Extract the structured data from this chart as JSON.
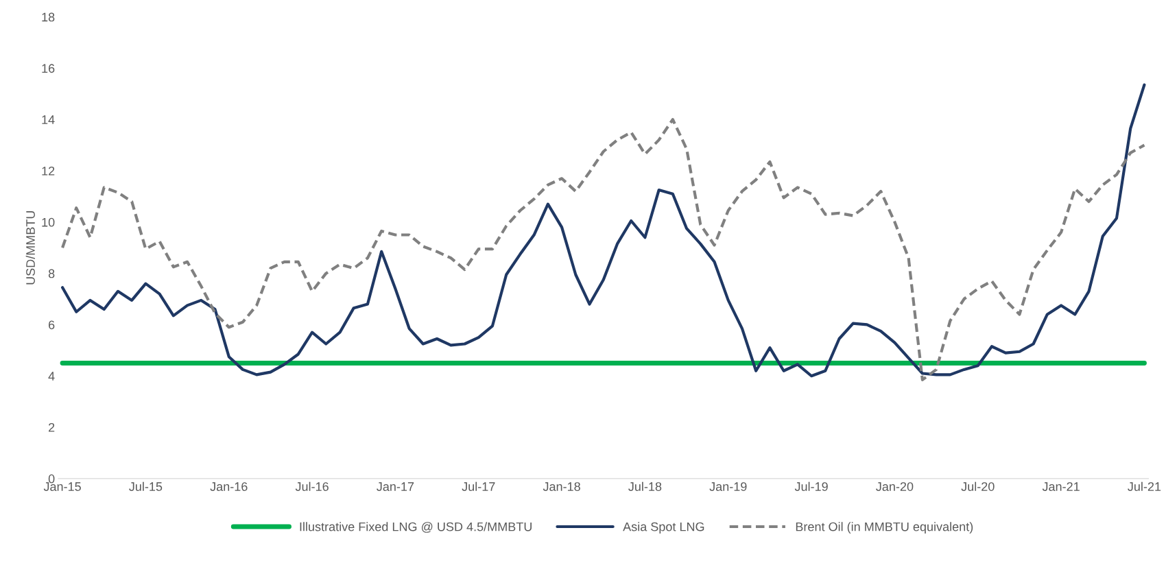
{
  "chart_data": {
    "type": "line",
    "ylabel": "USD/MMBTU",
    "categories": [
      "Jan-15",
      null,
      null,
      null,
      null,
      null,
      "Jul-15",
      null,
      null,
      null,
      null,
      null,
      "Jan-16",
      null,
      null,
      null,
      null,
      null,
      "Jul-16",
      null,
      null,
      null,
      null,
      null,
      "Jan-17",
      null,
      null,
      null,
      null,
      null,
      "Jul-17",
      null,
      null,
      null,
      null,
      null,
      "Jan-18",
      null,
      null,
      null,
      null,
      null,
      "Jul-18",
      null,
      null,
      null,
      null,
      null,
      "Jan-19",
      null,
      null,
      null,
      null,
      null,
      "Jul-19",
      null,
      null,
      null,
      null,
      null,
      "Jan-20",
      null,
      null,
      null,
      null,
      null,
      "Jul-20",
      null,
      null,
      null,
      null,
      null,
      "Jan-21",
      null,
      null,
      null,
      null,
      null,
      "Jul-21"
    ],
    "series": [
      {
        "name": "Illustrative Fixed LNG @ USD 4.5/MMBTU",
        "color": "#00b050",
        "line_style": "solid",
        "values": [
          4.5,
          4.5,
          4.5,
          4.5,
          4.5,
          4.5,
          4.5,
          4.5,
          4.5,
          4.5,
          4.5,
          4.5,
          4.5,
          4.5,
          4.5,
          4.5,
          4.5,
          4.5,
          4.5,
          4.5,
          4.5,
          4.5,
          4.5,
          4.5,
          4.5,
          4.5,
          4.5,
          4.5,
          4.5,
          4.5,
          4.5,
          4.5,
          4.5,
          4.5,
          4.5,
          4.5,
          4.5,
          4.5,
          4.5,
          4.5,
          4.5,
          4.5,
          4.5,
          4.5,
          4.5,
          4.5,
          4.5,
          4.5,
          4.5,
          4.5,
          4.5,
          4.5,
          4.5,
          4.5,
          4.5,
          4.5,
          4.5,
          4.5,
          4.5,
          4.5,
          4.5,
          4.5,
          4.5,
          4.5,
          4.5,
          4.5,
          4.5,
          4.5,
          4.5,
          4.5,
          4.5,
          4.5,
          4.5,
          4.5,
          4.5,
          4.5,
          4.5,
          4.5,
          4.5
        ]
      },
      {
        "name": "Asia Spot LNG",
        "color": "#1f3864",
        "line_style": "solid",
        "values": [
          7.45,
          6.5,
          6.95,
          6.6,
          7.3,
          6.95,
          7.6,
          7.2,
          6.35,
          6.75,
          6.95,
          6.6,
          4.75,
          4.25,
          4.05,
          4.15,
          4.45,
          4.85,
          5.7,
          5.25,
          5.7,
          6.65,
          6.8,
          8.85,
          7.4,
          5.85,
          5.25,
          5.45,
          5.2,
          5.25,
          5.5,
          5.95,
          7.95,
          8.75,
          9.5,
          10.7,
          9.8,
          7.95,
          6.8,
          7.75,
          9.15,
          10.05,
          9.4,
          11.25,
          11.1,
          9.75,
          9.15,
          8.45,
          6.95,
          5.85,
          4.2,
          5.1,
          4.2,
          4.45,
          4.0,
          4.2,
          5.45,
          6.05,
          6.0,
          5.75,
          5.3,
          4.7,
          4.1,
          4.05,
          4.05,
          4.25,
          4.4,
          5.15,
          4.9,
          4.95,
          5.25,
          6.4,
          6.75,
          6.4,
          7.3,
          9.45,
          10.15,
          13.65,
          15.35
        ]
      },
      {
        "name": "Brent Oil (in MMBTU equivalent)",
        "color": "#808080",
        "line_style": "dashed",
        "values": [
          9.0,
          10.55,
          9.4,
          11.35,
          11.15,
          10.8,
          8.95,
          9.25,
          8.25,
          8.45,
          7.5,
          6.45,
          5.9,
          6.1,
          6.75,
          8.2,
          8.45,
          8.45,
          7.3,
          8.0,
          8.35,
          8.2,
          8.6,
          9.65,
          9.5,
          9.5,
          9.05,
          8.85,
          8.6,
          8.15,
          8.95,
          8.95,
          9.85,
          10.45,
          10.9,
          11.45,
          11.7,
          11.2,
          11.95,
          12.75,
          13.2,
          13.5,
          12.65,
          13.2,
          14.0,
          12.85,
          9.9,
          9.1,
          10.45,
          11.2,
          11.65,
          12.35,
          10.95,
          11.35,
          11.1,
          10.3,
          10.35,
          10.25,
          10.65,
          11.2,
          10.0,
          8.6,
          3.85,
          4.25,
          6.15,
          7.0,
          7.4,
          7.7,
          6.95,
          6.4,
          8.15,
          8.9,
          9.6,
          11.3,
          10.8,
          11.45,
          11.85,
          12.7,
          13.0
        ]
      }
    ],
    "ylim": [
      0,
      18
    ],
    "yticks": [
      0,
      2,
      4,
      6,
      8,
      10,
      12,
      14,
      16,
      18
    ],
    "grid": false,
    "legend": "bottom",
    "marker": "none"
  }
}
